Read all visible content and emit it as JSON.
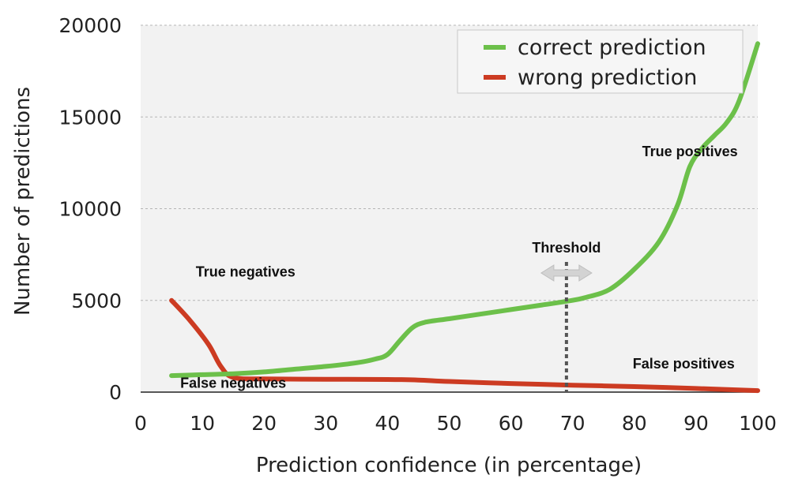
{
  "chart_data": {
    "type": "line",
    "xlabel": "Prediction confidence (in percentage)",
    "ylabel": "Number of predictions",
    "xlim": [
      0,
      100
    ],
    "ylim": [
      0,
      20000
    ],
    "xticks": [
      0,
      10,
      20,
      30,
      40,
      50,
      60,
      70,
      80,
      90,
      100
    ],
    "yticks": [
      0,
      5000,
      10000,
      15000,
      20000
    ],
    "grid": "horizontal dashed",
    "legend_position": "top-right",
    "series": [
      {
        "name": "correct prediction",
        "color": "#6cc04a",
        "x": [
          5,
          10,
          15,
          20,
          25,
          30,
          35,
          38,
          40,
          42,
          44,
          46,
          50,
          55,
          60,
          65,
          69,
          72,
          76,
          80,
          84,
          87,
          89,
          91,
          93,
          95,
          97,
          100
        ],
        "y": [
          900,
          950,
          1000,
          1100,
          1250,
          1400,
          1600,
          1800,
          2050,
          2800,
          3500,
          3800,
          4000,
          4250,
          4500,
          4750,
          4950,
          5150,
          5600,
          6700,
          8200,
          10200,
          12300,
          13300,
          14000,
          14700,
          15900,
          19000
        ]
      },
      {
        "name": "wrong prediction",
        "color": "#cc3b22",
        "x": [
          5,
          8,
          11,
          13,
          15,
          20,
          30,
          40,
          45,
          50,
          60,
          70,
          80,
          90,
          100
        ],
        "y": [
          5000,
          3900,
          2600,
          1400,
          800,
          720,
          700,
          690,
          660,
          580,
          470,
          380,
          300,
          200,
          80
        ]
      }
    ],
    "threshold": {
      "label": "Threshold",
      "x": 69
    },
    "annotations": [
      {
        "text": "True negatives",
        "x": 17,
        "y": 6300
      },
      {
        "text": "False negatives",
        "x": 15,
        "y": 230
      },
      {
        "text": "False positives",
        "x": 88,
        "y": 1280
      },
      {
        "text": "True positives",
        "x": 89,
        "y": 12850
      }
    ]
  }
}
